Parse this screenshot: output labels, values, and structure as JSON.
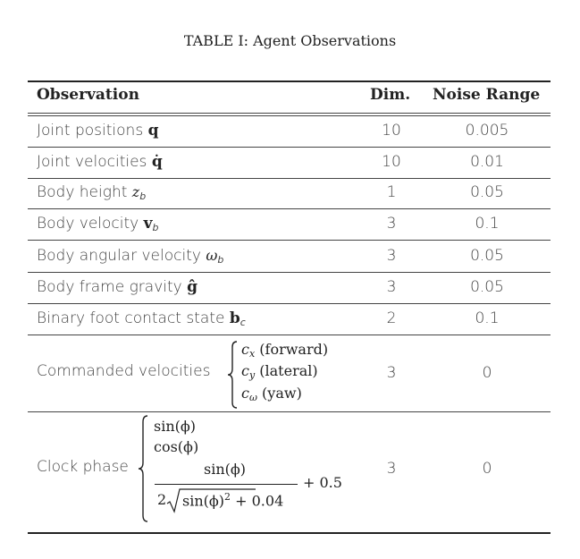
{
  "caption": "TABLE I: Agent Observations",
  "headers": {
    "observation": "Observation",
    "dim": "Dim.",
    "noise": "Noise Range"
  },
  "rows": [
    {
      "label": "Joint positions",
      "symbol": "q",
      "dim": "10",
      "noise": "0.005"
    },
    {
      "label": "Joint velocities",
      "symbol": "q̇",
      "dim": "10",
      "noise": "0.01"
    },
    {
      "label": "Body height",
      "symbol": "z",
      "symbol_sub": "b",
      "dim": "1",
      "noise": "0.05"
    },
    {
      "label": "Body velocity",
      "symbol": "v",
      "symbol_sub": "b",
      "dim": "3",
      "noise": "0.1"
    },
    {
      "label": "Body angular velocity",
      "symbol": "ω",
      "symbol_sub": "b",
      "dim": "3",
      "noise": "0.05"
    },
    {
      "label": "Body frame gravity",
      "symbol": "ĝ",
      "dim": "3",
      "noise": "0.05"
    },
    {
      "label": "Binary foot contact state",
      "symbol": "b",
      "symbol_sub": "c",
      "dim": "2",
      "noise": "0.1"
    }
  ],
  "commanded": {
    "label": "Commanded velocities",
    "lines": [
      {
        "sym": "c",
        "sub": "x",
        "text": "(forward)"
      },
      {
        "sym": "c",
        "sub": "y",
        "text": "(lateral)"
      },
      {
        "sym": "c",
        "sub": "ω",
        "text": "(yaw)"
      }
    ],
    "dim": "3",
    "noise": "0"
  },
  "clock": {
    "label": "Clock phase",
    "line1": "sin(ϕ)",
    "line2": "cos(ϕ)",
    "numerator": "sin(ϕ)",
    "denom_coef": "2",
    "denom_radicand": "sin(ϕ)",
    "denom_exp": "2",
    "denom_add": "+ 0.04",
    "plus": "+ 0.5",
    "dim": "3",
    "noise": "0"
  }
}
